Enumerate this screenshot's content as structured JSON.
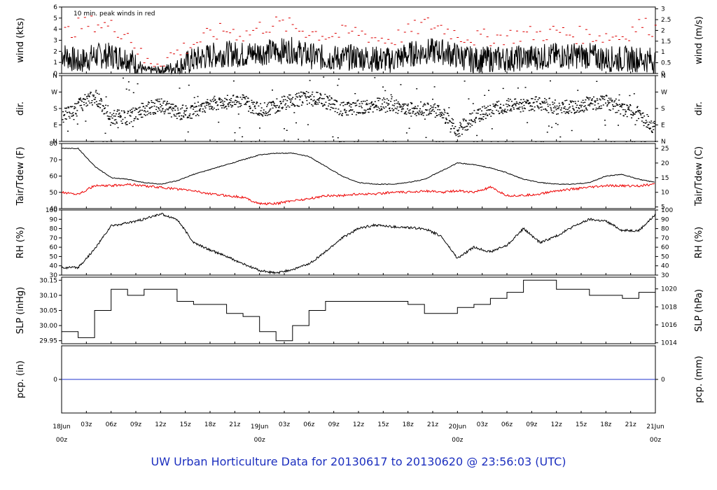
{
  "footer": {
    "title": "UW Urban Horticulture Data for 20130617  to  20130620 @ 23:56:03  (UTC)"
  },
  "colors": {
    "main_series": "#000000",
    "peak_wind": "#dd0000",
    "dewpoint": "#ee0000",
    "precip": "#2233cc",
    "day_label": "#dd0000",
    "title": "#1c2fbf"
  },
  "chart_data": [
    {
      "type": "line",
      "panel": "wind",
      "ylabel": "wind (kts)",
      "ylabel_right": "wind (m/s)",
      "annotation": "10 min. peak winds in red",
      "ylim": [
        0,
        6
      ],
      "yticks": [
        "0",
        "1",
        "2",
        "3",
        "4",
        "5",
        "6"
      ],
      "ylim_right": [
        0,
        3.086
      ],
      "yticks_right": [
        "0",
        "0.5",
        "1",
        "1.5",
        "2",
        "2.5",
        "3"
      ],
      "x_hours": [
        0,
        2,
        4,
        6,
        8,
        10,
        12,
        14,
        16,
        18,
        20,
        22,
        24,
        26,
        28,
        30,
        32,
        34,
        36,
        38,
        40,
        42,
        44,
        46,
        48,
        50,
        52,
        54,
        56,
        58,
        60,
        62,
        64,
        66,
        68,
        70,
        72
      ],
      "series": [
        {
          "name": "wind",
          "values": [
            1.8,
            1.0,
            1.6,
            1.6,
            1.4,
            0.3,
            0.3,
            0.6,
            1.2,
            1.6,
            1.8,
            1.7,
            1.9,
            2.0,
            2.1,
            1.6,
            1.4,
            1.4,
            1.5,
            1.3,
            1.2,
            1.7,
            2.0,
            2.0,
            1.6,
            1.2,
            1.3,
            1.3,
            1.4,
            1.5,
            1.6,
            1.6,
            1.6,
            1.3,
            1.3,
            1.3,
            1.2
          ]
        },
        {
          "name": "10 min. peak winds",
          "values": [
            3.5,
            4.3,
            4.6,
            4.2,
            3.6,
            1.0,
            1.2,
            2.0,
            2.8,
            3.5,
            4.0,
            3.5,
            4.2,
            4.5,
            4.2,
            3.8,
            3.5,
            3.6,
            3.8,
            3.2,
            3.1,
            3.8,
            4.5,
            4.2,
            3.5,
            3.2,
            3.3,
            3.4,
            3.6,
            3.6,
            3.8,
            3.5,
            3.5,
            3.4,
            3.4,
            4.5,
            4.0
          ]
        }
      ]
    },
    {
      "type": "scatter",
      "panel": "dir",
      "ylabel": "dir.",
      "ylabel_right": "dir.",
      "ylim": [
        0,
        360
      ],
      "yticks": [
        "N",
        "E",
        "S",
        "W",
        "N"
      ],
      "x_hours": [
        0,
        2,
        4,
        6,
        8,
        10,
        12,
        14,
        16,
        18,
        20,
        22,
        24,
        26,
        28,
        30,
        32,
        34,
        36,
        38,
        40,
        42,
        44,
        46,
        48,
        50,
        52,
        54,
        56,
        58,
        60,
        62,
        64,
        66,
        68,
        70,
        72
      ],
      "series": [
        {
          "name": "dir",
          "values": [
            140,
            200,
            250,
            140,
            130,
            180,
            200,
            160,
            170,
            210,
            220,
            220,
            170,
            200,
            230,
            240,
            220,
            180,
            190,
            200,
            200,
            180,
            180,
            160,
            60,
            140,
            170,
            200,
            200,
            210,
            190,
            190,
            210,
            220,
            180,
            150,
            70
          ]
        }
      ]
    },
    {
      "type": "line",
      "panel": "temp",
      "ylabel": "Tair/Tdew (F)",
      "ylabel_right": "Tair/Tdew (C)",
      "ylim": [
        40,
        80
      ],
      "yticks": [
        "40",
        "50",
        "60",
        "70",
        "80"
      ],
      "ylim_right": [
        4.44,
        26.67
      ],
      "yticks_right": [
        "5",
        "10",
        "15",
        "20",
        "25"
      ],
      "x_hours": [
        0,
        2,
        4,
        6,
        8,
        10,
        12,
        14,
        16,
        18,
        20,
        22,
        24,
        26,
        28,
        30,
        32,
        34,
        36,
        38,
        40,
        42,
        44,
        46,
        48,
        50,
        52,
        54,
        56,
        58,
        60,
        62,
        64,
        66,
        68,
        70,
        72
      ],
      "series": [
        {
          "name": "Tair",
          "values": [
            77,
            77,
            66,
            59,
            58,
            56,
            55,
            57,
            61,
            64,
            67,
            70,
            73,
            74,
            74,
            72,
            66,
            60,
            56,
            55,
            55,
            56,
            58,
            63,
            68,
            67,
            65,
            62,
            58,
            56,
            55,
            55,
            56,
            60,
            61,
            58,
            56
          ]
        },
        {
          "name": "Tdew",
          "values": [
            50,
            49,
            54,
            54,
            55,
            54,
            53,
            52,
            51,
            49,
            48,
            47,
            43,
            43,
            45,
            46,
            48,
            48,
            49,
            49,
            50,
            50,
            51,
            50,
            51,
            50,
            53,
            48,
            48,
            49,
            51,
            52,
            53,
            54,
            54,
            54,
            55
          ]
        }
      ]
    },
    {
      "type": "line",
      "panel": "rh",
      "ylabel": "RH (%)",
      "ylabel_right": "RH (%)",
      "ylim": [
        30,
        100
      ],
      "yticks": [
        "30",
        "40",
        "50",
        "60",
        "70",
        "80",
        "90",
        "100"
      ],
      "x_hours": [
        0,
        2,
        4,
        6,
        8,
        10,
        12,
        14,
        16,
        18,
        20,
        22,
        24,
        26,
        28,
        30,
        32,
        34,
        36,
        38,
        40,
        42,
        44,
        46,
        48,
        50,
        52,
        54,
        56,
        58,
        60,
        62,
        64,
        66,
        68,
        70,
        72
      ],
      "series": [
        {
          "name": "RH",
          "values": [
            38,
            38,
            58,
            83,
            86,
            90,
            96,
            90,
            65,
            57,
            50,
            42,
            35,
            32,
            36,
            42,
            55,
            70,
            80,
            84,
            82,
            81,
            80,
            72,
            48,
            60,
            55,
            62,
            80,
            65,
            72,
            82,
            90,
            88,
            78,
            78,
            95
          ]
        }
      ]
    },
    {
      "type": "line",
      "panel": "slp",
      "ylabel": "SLP (inHg)",
      "ylabel_right": "SLP (hPa)",
      "ylim": [
        29.94,
        30.16
      ],
      "yticks": [
        "29.95",
        "30.00",
        "30.05",
        "30.10",
        "30.15"
      ],
      "ylim_right": [
        1013.9,
        1021.3
      ],
      "yticks_right": [
        "1014",
        "1016",
        "1018",
        "1020"
      ],
      "x_hours": [
        0,
        2,
        4,
        6,
        8,
        10,
        12,
        14,
        16,
        18,
        20,
        22,
        24,
        26,
        28,
        30,
        32,
        34,
        36,
        38,
        40,
        42,
        44,
        46,
        48,
        50,
        52,
        54,
        56,
        58,
        60,
        62,
        64,
        66,
        68,
        70,
        72
      ],
      "series": [
        {
          "name": "SLP",
          "values": [
            29.98,
            29.96,
            30.05,
            30.12,
            30.1,
            30.12,
            30.12,
            30.08,
            30.07,
            30.07,
            30.04,
            30.03,
            29.98,
            29.95,
            30.0,
            30.05,
            30.08,
            30.08,
            30.08,
            30.08,
            30.08,
            30.07,
            30.04,
            30.04,
            30.06,
            30.07,
            30.09,
            30.11,
            30.15,
            30.15,
            30.12,
            30.12,
            30.1,
            30.1,
            30.09,
            30.11,
            30.15
          ]
        }
      ]
    },
    {
      "type": "line",
      "panel": "pcp",
      "ylabel": "pcp. (in)",
      "ylabel_right": "pcp. (mm)",
      "yticks": [
        "0"
      ],
      "yticks_right": [
        "0"
      ],
      "x_hours": [
        0,
        72
      ],
      "series": [
        {
          "name": "pcp",
          "values": [
            0,
            0
          ]
        }
      ]
    }
  ],
  "time_axis": {
    "hour_ticks": [
      "03z",
      "06z",
      "09z",
      "12z",
      "15z",
      "18z",
      "21z",
      "03z",
      "06z",
      "09z",
      "12z",
      "15z",
      "18z",
      "21z",
      "03z",
      "06z",
      "09z",
      "12z",
      "15z",
      "18z",
      "21z"
    ],
    "hour_tick_positions": [
      3,
      6,
      9,
      12,
      15,
      18,
      21,
      27,
      30,
      33,
      36,
      39,
      42,
      45,
      51,
      54,
      57,
      60,
      63,
      66,
      69
    ],
    "day_labels": [
      {
        "date": "18Jun",
        "hour": "00z"
      },
      {
        "date": "19Jun",
        "hour": "00z"
      },
      {
        "date": "20Jun",
        "hour": "00z"
      },
      {
        "date": "21Jun",
        "hour": "00z"
      }
    ],
    "day_positions": [
      0,
      24,
      48,
      72
    ]
  }
}
